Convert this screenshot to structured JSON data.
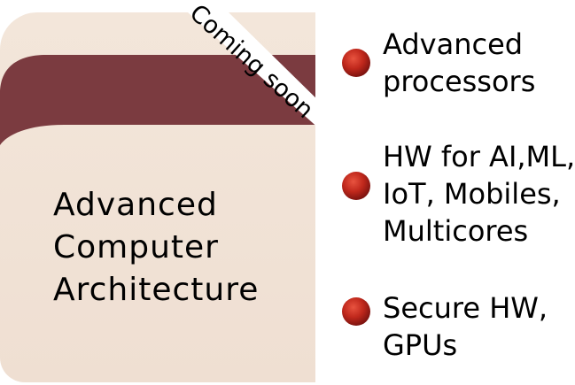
{
  "colors": {
    "card_background": "#f2e4d8",
    "wave_band": "#7b3b40",
    "ribbon_background": "#ffffff",
    "bullet": "#c0281c",
    "text": "#000000"
  },
  "card": {
    "ribbon_label": "Coming soon",
    "title_lines": [
      "Advanced",
      "Computer",
      "Architecture"
    ]
  },
  "topics": [
    {
      "icon": "red-sphere-bullet",
      "lines": [
        "Advanced",
        "processors"
      ]
    },
    {
      "icon": "red-sphere-bullet",
      "lines": [
        "HW for AI,ML,",
        "IoT, Mobiles,",
        "Multicores"
      ]
    },
    {
      "icon": "red-sphere-bullet",
      "lines": [
        "Secure HW,",
        "GPUs"
      ]
    }
  ]
}
